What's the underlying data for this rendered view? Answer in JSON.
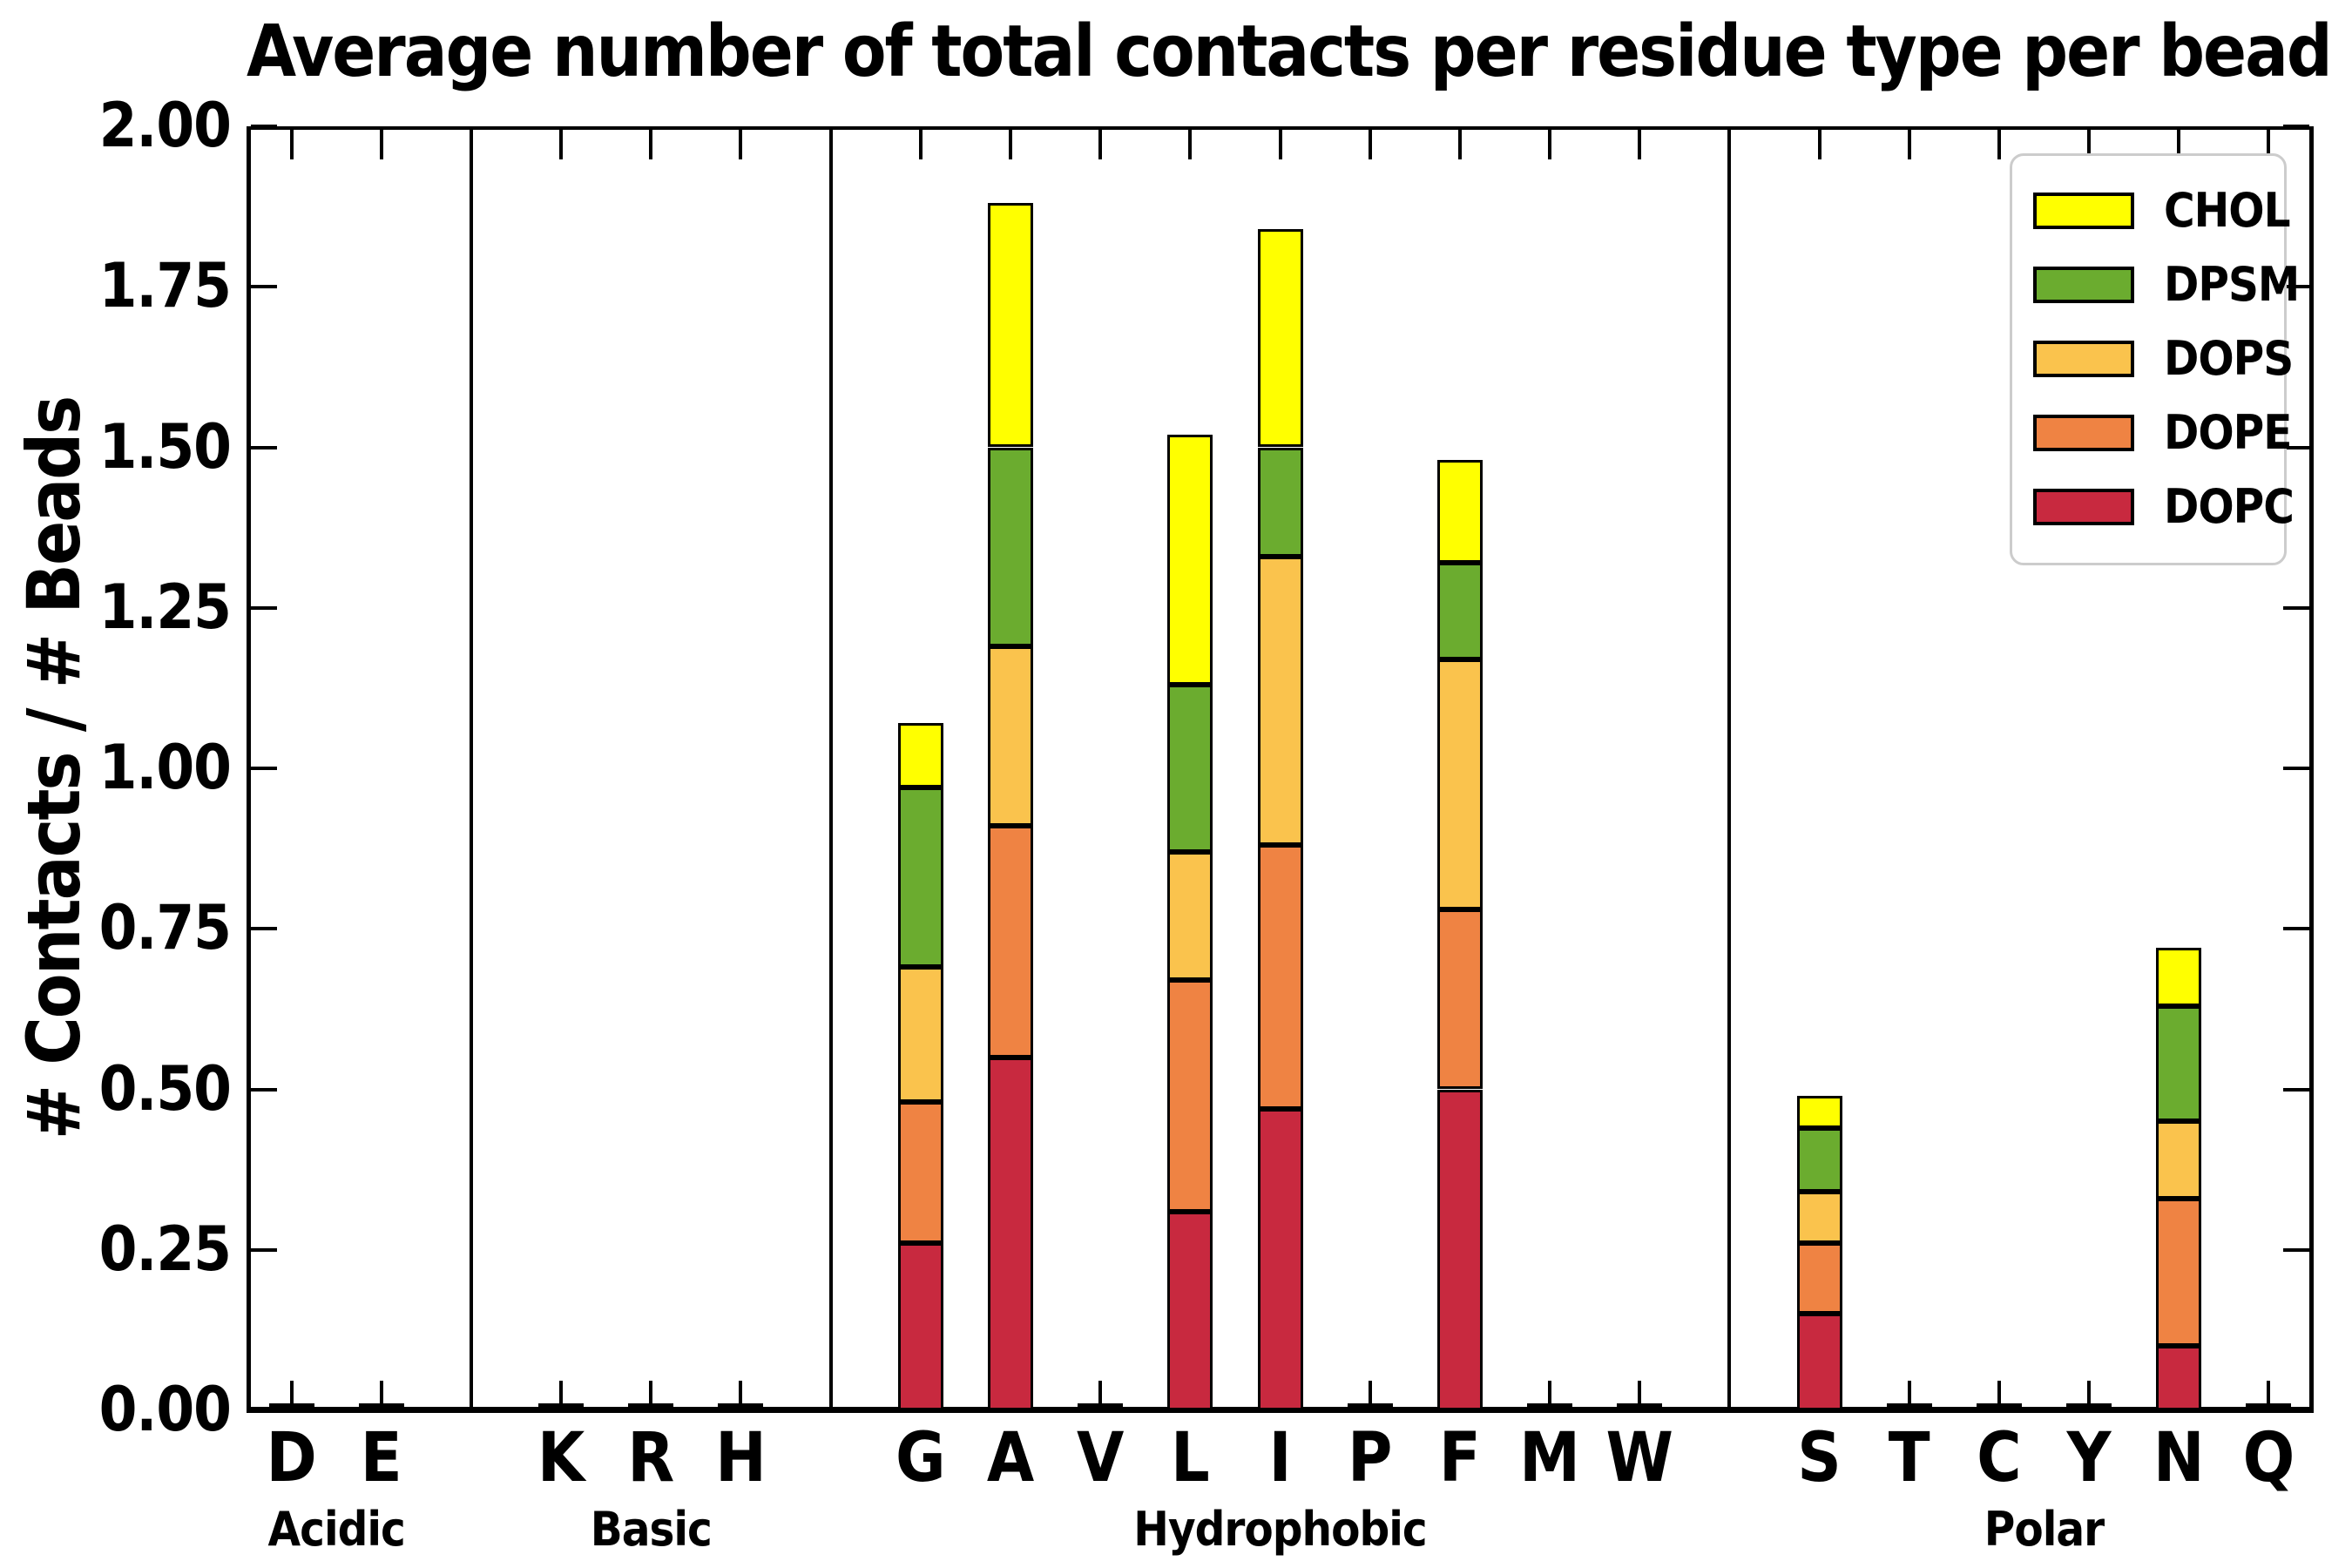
{
  "title": "Average number of total contacts per residue type per bead",
  "ylabel": "# Contacts / # Beads",
  "legend": [
    "CHOL",
    "DPSM",
    "DOPS",
    "DOPE",
    "DOPC"
  ],
  "colors": {
    "CHOL": "#FFFF00",
    "DPSM": "#6BAC2F",
    "DOPS": "#FAC34D",
    "DOPE": "#EF8343",
    "DOPC": "#C8293F",
    "axis": "#000000",
    "legend_border": "#CCCCCC"
  },
  "chart_data": {
    "type": "bar",
    "stacked": true,
    "title": "Average number of total contacts per residue type per bead",
    "xlabel": "",
    "ylabel": "# Contacts / # Beads",
    "ylim": [
      0,
      2.0
    ],
    "yticks": [
      "2.00",
      "1.75",
      "1.50",
      "1.25",
      "1.00",
      "0.75",
      "0.50",
      "0.25",
      "0.00"
    ],
    "grid": false,
    "legend_position": "upper right",
    "stack_order_bottom_to_top": [
      "DOPC",
      "DOPE",
      "DOPS",
      "DPSM",
      "CHOL"
    ],
    "groups": [
      {
        "label": "Acidic",
        "categories": [
          "D",
          "E"
        ]
      },
      {
        "label": "Basic",
        "categories": [
          "K",
          "R",
          "H"
        ]
      },
      {
        "label": "Hydrophobic",
        "categories": [
          "G",
          "A",
          "V",
          "L",
          "I",
          "P",
          "F",
          "M",
          "W"
        ]
      },
      {
        "label": "Polar",
        "categories": [
          "S",
          "T",
          "C",
          "Y",
          "N",
          "Q"
        ]
      }
    ],
    "values": {
      "D": [
        0,
        0,
        0,
        0,
        0
      ],
      "E": [
        0,
        0,
        0,
        0,
        0
      ],
      "K": [
        0,
        0,
        0,
        0,
        0
      ],
      "R": [
        0,
        0,
        0,
        0,
        0
      ],
      "H": [
        0,
        0,
        0,
        0,
        0
      ],
      "G": [
        0.26,
        0.22,
        0.21,
        0.28,
        0.1
      ],
      "A": [
        0.55,
        0.36,
        0.28,
        0.31,
        0.38
      ],
      "V": [
        0,
        0,
        0,
        0,
        0
      ],
      "L": [
        0.31,
        0.36,
        0.2,
        0.26,
        0.39
      ],
      "I": [
        0.47,
        0.41,
        0.45,
        0.17,
        0.34
      ],
      "P": [
        0,
        0,
        0,
        0,
        0
      ],
      "F": [
        0.5,
        0.28,
        0.39,
        0.15,
        0.16
      ],
      "M": [
        0,
        0,
        0,
        0,
        0
      ],
      "W": [
        0,
        0,
        0,
        0,
        0
      ],
      "S": [
        0.15,
        0.11,
        0.08,
        0.1,
        0.05
      ],
      "T": [
        0,
        0,
        0,
        0,
        0
      ],
      "C": [
        0,
        0,
        0,
        0,
        0
      ],
      "Y": [
        0,
        0,
        0,
        0,
        0
      ],
      "N": [
        0.1,
        0.23,
        0.12,
        0.18,
        0.09
      ],
      "Q": [
        0,
        0,
        0,
        0,
        0
      ]
    }
  }
}
